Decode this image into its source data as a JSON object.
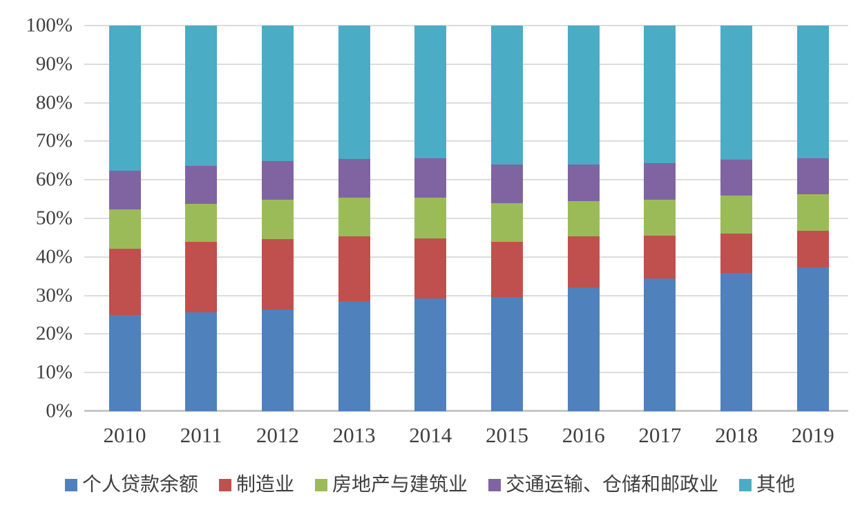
{
  "chart_data": {
    "type": "bar",
    "subtype": "stacked-100-percent",
    "title": "",
    "xlabel": "",
    "ylabel": "",
    "categories": [
      "2010",
      "2011",
      "2012",
      "2013",
      "2014",
      "2015",
      "2016",
      "2017",
      "2018",
      "2019"
    ],
    "series": [
      {
        "name": "个人贷款余额",
        "color": "#4F81BD",
        "values": [
          24.9,
          25.6,
          26.3,
          28.5,
          29.2,
          29.6,
          32.1,
          34.4,
          35.8,
          37.2
        ]
      },
      {
        "name": "制造业",
        "color": "#C0504D",
        "values": [
          17.2,
          18.3,
          18.3,
          16.9,
          15.6,
          14.3,
          13.2,
          11.1,
          10.3,
          9.5
        ]
      },
      {
        "name": "房地产与建筑业",
        "color": "#9BBB59",
        "values": [
          10.3,
          9.9,
          10.2,
          10.0,
          10.6,
          10.0,
          9.2,
          9.3,
          9.8,
          9.6
        ]
      },
      {
        "name": "交通运输、仓储和邮政业",
        "color": "#8064A2",
        "values": [
          10.0,
          9.8,
          10.1,
          10.0,
          10.2,
          10.0,
          9.4,
          9.6,
          9.3,
          9.3
        ]
      },
      {
        "name": "其他",
        "color": "#4BACC6",
        "values": [
          37.6,
          36.4,
          35.1,
          34.6,
          34.4,
          36.1,
          36.1,
          35.6,
          34.8,
          34.4
        ]
      }
    ],
    "y_ticks": [
      "100%",
      "90%",
      "80%",
      "70%",
      "60%",
      "50%",
      "40%",
      "30%",
      "20%",
      "10%",
      "0%"
    ],
    "ylim": [
      0,
      100
    ],
    "grid": true,
    "gridline_color": "#DCDCDC",
    "axis_line_color": "#C6C6C6",
    "text_color": "#3F3F3F",
    "legend_position": "bottom"
  }
}
